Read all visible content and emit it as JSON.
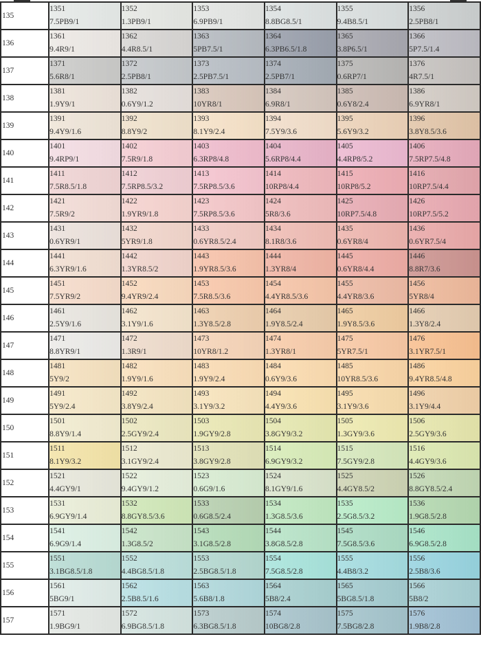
{
  "rows": [
    {
      "label": "135",
      "cells": [
        [
          "1351",
          "7.5PB9/1",
          "#e6eae8"
        ],
        [
          "1352",
          "1.3PB9/1",
          "#e6e8e4"
        ],
        [
          "1353",
          "6.9PB9/1",
          "#e4e6e4"
        ],
        [
          "1354",
          "8.8BG8.5/1",
          "#dde2e2"
        ],
        [
          "1355",
          "9.4B8.5/1",
          "#d9dede"
        ],
        [
          "1356",
          "2.5PB8/1",
          "#ccd0d0"
        ]
      ]
    },
    {
      "label": "136",
      "cells": [
        [
          "1361",
          "9.4R9/1",
          "#ede9e5"
        ],
        [
          "1362",
          "4.4R8.5/1",
          "#d8d6d4"
        ],
        [
          "1363",
          "5PB7.5/1",
          "#b6bbc1"
        ],
        [
          "1364",
          "6.3PB6.5/1.8",
          "#9aa0ac"
        ],
        [
          "1365",
          "3.8P6.5/1",
          "#a8a8b0"
        ],
        [
          "1366",
          "5P7.5/1.4",
          "#bdbcc3"
        ]
      ]
    },
    {
      "label": "137",
      "cells": [
        [
          "1371",
          "5.6R8/1",
          "#cbcbc9"
        ],
        [
          "1372",
          "2.5PB8/1",
          "#c4c8cb"
        ],
        [
          "1373",
          "2.5PB7.5/1",
          "#b8bec5"
        ],
        [
          "1374",
          "2.5PB7/1",
          "#a4acb5"
        ],
        [
          "1375",
          "0.6RP7/1",
          "#b8b7b5"
        ],
        [
          "1376",
          "4R7.5/1",
          "#c6c2bf"
        ]
      ]
    },
    {
      "label": "138",
      "cells": [
        [
          "1381",
          "1.9Y9/1",
          "#ede3da"
        ],
        [
          "1382",
          "0.6Y9/1.2",
          "#e6e0dc"
        ],
        [
          "1383",
          "10YR8/1",
          "#d9c7bb"
        ],
        [
          "1384",
          "6.9R8/1",
          "#d4c6bd"
        ],
        [
          "1385",
          "0.6Y8/2.4",
          "#ccbbb3"
        ],
        [
          "1386",
          "6.9YR8/1",
          "#d2cbc4"
        ]
      ]
    },
    {
      "label": "139",
      "cells": [
        [
          "1391",
          "9.4Y9/1.6",
          "#efe5d8"
        ],
        [
          "1392",
          "8.8Y9/2",
          "#f0e2cc"
        ],
        [
          "1393",
          "8.1Y9/2.4",
          "#f6e2c8"
        ],
        [
          "1394",
          "7.5Y9/3.6",
          "#f2deca"
        ],
        [
          "1395",
          "5.6Y9/3.2",
          "#ecd2b8"
        ],
        [
          "1396",
          "3.8Y8.5/3.6",
          "#e2c5a8"
        ]
      ]
    },
    {
      "label": "140",
      "cells": [
        [
          "1401",
          "9.4RP9/1",
          "#f4dde3"
        ],
        [
          "1402",
          "7.5R9/1.8",
          "#f5cdd3"
        ],
        [
          "1403",
          "6.3RP8/4.8",
          "#f0bccd"
        ],
        [
          "1404",
          "5.6RP8/4.4",
          "#e8b3c8"
        ],
        [
          "1405",
          "4.4RP8/5.2",
          "#ecb9d1"
        ],
        [
          "1406",
          "7.5RP7.5/4.8",
          "#e6aabb"
        ]
      ]
    },
    {
      "label": "141",
      "cells": [
        [
          "1411",
          "7.5R8.5/1.8",
          "#f0d4d4"
        ],
        [
          "1412",
          "7.5RP8.5/3.2",
          "#f0cfd4"
        ],
        [
          "1413",
          "7.5RP8.5/3.6",
          "#f5c4cf"
        ],
        [
          "1414",
          "10RP8/4.4",
          "#efb7bc"
        ],
        [
          "1415",
          "10RP8/5.2",
          "#eeadb4"
        ],
        [
          "1416",
          "10RP7.5/4.4",
          "#e4a7ad"
        ]
      ]
    },
    {
      "label": "142",
      "cells": [
        [
          "1421",
          "7.5R9/2",
          "#f3dcd6"
        ],
        [
          "1422",
          "1.9YR9/1.8",
          "#f6d3cf"
        ],
        [
          "1423",
          "7.5RP8.5/3.6",
          "#f4c6c8"
        ],
        [
          "1424",
          "5R8/3.6",
          "#efbbbb"
        ],
        [
          "1425",
          "10RP7.5/4.8",
          "#e8acb4"
        ],
        [
          "1426",
          "10RP7.5/5.2",
          "#e8a8b0"
        ]
      ]
    },
    {
      "label": "143",
      "cells": [
        [
          "1431",
          "0.6YR9/1",
          "#ece2dc"
        ],
        [
          "1432",
          "5YR9/1.8",
          "#f2d6cc"
        ],
        [
          "1433",
          "0.6YR8.5/2.4",
          "#f2cbc4"
        ],
        [
          "1434",
          "8.1R8/3.6",
          "#f0bdb5"
        ],
        [
          "1435",
          "0.6YR8/4",
          "#eeb5ae"
        ],
        [
          "1436",
          "0.6YR7.5/4",
          "#eaa9a9"
        ]
      ]
    },
    {
      "label": "144",
      "cells": [
        [
          "1441",
          "6.3YR9/1.6",
          "#f2dfd2"
        ],
        [
          "1442",
          "1.3YR8.5/2",
          "#f1d4cc"
        ],
        [
          "1443",
          "1.9YR8.5/3.6",
          "#f7c2aa"
        ],
        [
          "1444",
          "1.3YR8/4",
          "#f0b4a4"
        ],
        [
          "1445",
          "0.6YR8/4.4",
          "#eeaca5"
        ],
        [
          "1446",
          "8.8R7/3.6",
          "#cc9490"
        ]
      ]
    },
    {
      "label": "145",
      "cells": [
        [
          "1451",
          "7.5YR9/2",
          "#f6dccb"
        ],
        [
          "1452",
          "9.4YR9/2.4",
          "#f9d9bd"
        ],
        [
          "1453",
          "7.5R8.5/3.6",
          "#f9c8ab"
        ],
        [
          "1454",
          "4.4YR8.5/3.6",
          "#f6c5a8"
        ],
        [
          "1455",
          "4.4YR8/3.6",
          "#eebba5"
        ],
        [
          "1456",
          "5YR8/4",
          "#eeb99b"
        ]
      ]
    },
    {
      "label": "146",
      "cells": [
        [
          "1461",
          "2.5Y9/1.6",
          "#e9e6e0"
        ],
        [
          "1462",
          "3.1Y9/1.6",
          "#f4e4cc"
        ],
        [
          "1463",
          "1.3Y8.5/2.8",
          "#eecfae"
        ],
        [
          "1464",
          "1.9Y8.5/2.4",
          "#e8ccaa"
        ],
        [
          "1465",
          "1.9Y8.5/3.6",
          "#efcca0"
        ],
        [
          "1466",
          "1.3Y8/2.4",
          "#e4ccb0"
        ]
      ]
    },
    {
      "label": "147",
      "cells": [
        [
          "1471",
          "8.8YR9/1",
          "#ecebe8"
        ],
        [
          "1472",
          "1.3R9/1",
          "#efdccc"
        ],
        [
          "1473",
          "10YR8/1.2",
          "#f6d4b8"
        ],
        [
          "1474",
          "1.3YR8/1",
          "#f8ccaa"
        ],
        [
          "1475",
          "5YR7.5/1",
          "#f8c8a4"
        ],
        [
          "1476",
          "3.1YR7.5/1",
          "#f8c090"
        ]
      ]
    },
    {
      "label": "148",
      "cells": [
        [
          "1481",
          "5Y9/2",
          "#f6e2c0"
        ],
        [
          "1482",
          "1.9Y9/1.6",
          "#fae0bc"
        ],
        [
          "1483",
          "1.9Y9/2.4",
          "#fbdcb4"
        ],
        [
          "1484",
          "0.6Y9/3.6",
          "#fcdcb0"
        ],
        [
          "1485",
          "10YR8.5/3.6",
          "#fad6a8"
        ],
        [
          "1486",
          "9.4YR8.5/4.8",
          "#fbd29e"
        ]
      ]
    },
    {
      "label": "149",
      "cells": [
        [
          "1491",
          "5Y9/2.4",
          "#f6e8c8"
        ],
        [
          "1492",
          "3.8Y9/2.4",
          "#f4e4c0"
        ],
        [
          "1493",
          "3.1Y9/3.2",
          "#f8e4bc"
        ],
        [
          "1494",
          "4.4Y9/3.6",
          "#fae2b0"
        ],
        [
          "1495",
          "3.1Y9/3.6",
          "#f8dcac"
        ],
        [
          "1496",
          "3.1Y9/4.4",
          "#f0d0a8"
        ]
      ]
    },
    {
      "label": "150",
      "cells": [
        [
          "1501",
          "8.8Y9/1.4",
          "#f2ecd0"
        ],
        [
          "1502",
          "2.5GY9/2.4",
          "#ece8c0"
        ],
        [
          "1503",
          "1.9GY9/2.8",
          "#eae8b4"
        ],
        [
          "1504",
          "3.8GY9/3.2",
          "#e6e8b0"
        ],
        [
          "1505",
          "1.3GY9/3.6",
          "#eeeab0"
        ],
        [
          "1506",
          "2.5GY9/3.6",
          "#e6e6ac"
        ]
      ]
    },
    {
      "label": "151",
      "cells": [
        [
          "1511",
          "8.1Y9/3.2",
          "#f4e4a8"
        ],
        [
          "1512",
          "3.1GY9/2.4",
          "#ecead0"
        ],
        [
          "1513",
          "3.8GY9/2.8",
          "#e2e2b8"
        ],
        [
          "1514",
          "6.9GY9/3.2",
          "#d8ecb8"
        ],
        [
          "1515",
          "7.5GY9/2.8",
          "#d6e8bc"
        ],
        [
          "1516",
          "4.4GY9/3.6",
          "#dce8b0"
        ]
      ]
    },
    {
      "label": "152",
      "cells": [
        [
          "1521",
          "4.4GY9/1",
          "#e8e8dc"
        ],
        [
          "1522",
          "9.4GY9/1.2",
          "#e6efdc"
        ],
        [
          "1523",
          "0.6G9/1.6",
          "#d8ecd2"
        ],
        [
          "1524",
          "8.1GY9/1.6",
          "#dae4cc"
        ],
        [
          "1525",
          "4.4GY8.5/2",
          "#ced4b4"
        ],
        [
          "1526",
          "8.8GY8.5/2.4",
          "#c2d8b4"
        ]
      ]
    },
    {
      "label": "153",
      "cells": [
        [
          "1531",
          "6.9GY9/1.4",
          "#eaeed8"
        ],
        [
          "1532",
          "8.8GY8.5/3.6",
          "#d0e8b8"
        ],
        [
          "1533",
          "0.6G8.5/2.4",
          "#b8d0b0"
        ],
        [
          "1534",
          "1.3G8.5/3.6",
          "#c0e8c0"
        ],
        [
          "1535",
          "2.5G8.5/3.2",
          "#b8ecc8"
        ],
        [
          "1536",
          "1.9G8.5/2.8",
          "#b4d8b0"
        ]
      ]
    },
    {
      "label": "154",
      "cells": [
        [
          "1541",
          "6.9G9/1.4",
          "#dcf0e4"
        ],
        [
          "1542",
          "1.3G8.5/2",
          "#c8e4c8"
        ],
        [
          "1543",
          "3.1G8.5/2.8",
          "#b4dcb8"
        ],
        [
          "1544",
          "3.8G8.5/2.8",
          "#b8e4c8"
        ],
        [
          "1545",
          "7.5G8.5/3.6",
          "#acdcc4"
        ],
        [
          "1546",
          "6.9G8.5/2.8",
          "#a8e4c8"
        ]
      ]
    },
    {
      "label": "155",
      "cells": [
        [
          "1551",
          "3.1BG8.5/1.8",
          "#b8dcd4"
        ],
        [
          "1552",
          "4.4BG8.5/1.8",
          "#bce0dc"
        ],
        [
          "1553",
          "2.5BG8.5/1.8",
          "#b4d8d0"
        ],
        [
          "1554",
          "7.5G8.5/2.8",
          "#a8e4dc"
        ],
        [
          "1555",
          "4.4B8/3.2",
          "#a4dce0"
        ],
        [
          "1556",
          "2.5B8/3.6",
          "#98d4e0"
        ]
      ]
    },
    {
      "label": "156",
      "cells": [
        [
          "1561",
          "5BG9/1",
          "#e0ece8"
        ],
        [
          "1562",
          "2.5B8.5/1.6",
          "#b8e0e4"
        ],
        [
          "1563",
          "5.6B8/1.8",
          "#b0d8dc"
        ],
        [
          "1564",
          "5B8/2.4",
          "#a8d0d0"
        ],
        [
          "1565",
          "5BG8.5/1.8",
          "#a4ccd0"
        ],
        [
          "1566",
          "5B8/2",
          "#a8d0d4"
        ]
      ]
    },
    {
      "label": "157",
      "cells": [
        [
          "1571",
          "1.9BG9/1",
          "#e4e8e4"
        ],
        [
          "1572",
          "6.9BG8.5/1.8",
          "#d4e4e0"
        ],
        [
          "1573",
          "6.3BG8.5/1.8",
          "#b8cccc"
        ],
        [
          "1574",
          "10BG8/2.8",
          "#a8c4cc"
        ],
        [
          "1575",
          "7.5BG8/2.8",
          "#a4c4cc"
        ],
        [
          "1576",
          "1.9B8/2.8",
          "#a0c0d4"
        ]
      ]
    }
  ]
}
